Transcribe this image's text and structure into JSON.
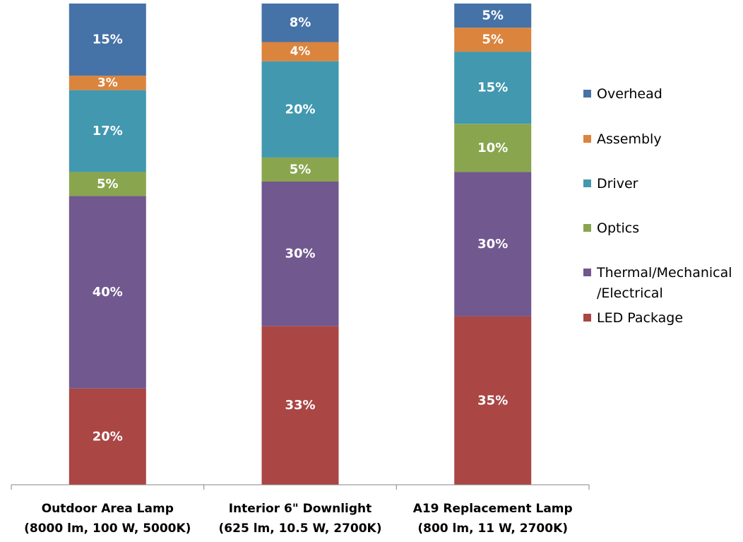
{
  "chart_data": {
    "type": "bar",
    "stacked": true,
    "percent": true,
    "title": "",
    "xlabel": "",
    "ylabel": "",
    "ylim": [
      0,
      100
    ],
    "grid": false,
    "legend_position": "right",
    "categories": [
      [
        "Outdoor Area Lamp",
        "(8000 lm, 100 W, 5000K)"
      ],
      [
        "Interior 6\" Downlight",
        "(625 lm, 10.5 W, 2700K)"
      ],
      [
        "A19 Replacement Lamp",
        "(800 lm, 11 W, 2700K)"
      ]
    ],
    "series": [
      {
        "name": "LED Package",
        "color": "#AA4644",
        "values": [
          20,
          33,
          35
        ],
        "labels": [
          "20%",
          "33%",
          "35%"
        ]
      },
      {
        "name": "Thermal/Mechanical /Electrical",
        "legend_lines": [
          "Thermal/Mechanical",
          "/Electrical"
        ],
        "color": "#71588F",
        "values": [
          40,
          30,
          30
        ],
        "labels": [
          "40%",
          "30%",
          "30%"
        ]
      },
      {
        "name": "Optics",
        "color": "#89A54E",
        "values": [
          5,
          5,
          10
        ],
        "labels": [
          "5%",
          "5%",
          "10%"
        ]
      },
      {
        "name": "Driver",
        "color": "#4198AF",
        "values": [
          17,
          20,
          15
        ],
        "labels": [
          "17%",
          "20%",
          "15%"
        ]
      },
      {
        "name": "Assembly",
        "color": "#DB843D",
        "values": [
          3,
          4,
          5
        ],
        "labels": [
          "3%",
          "4%",
          "5%"
        ]
      },
      {
        "name": "Overhead",
        "color": "#4572A7",
        "values": [
          15,
          8,
          5
        ],
        "labels": [
          "15%",
          "8%",
          "5%"
        ]
      }
    ],
    "legend_order": [
      "Overhead",
      "Assembly",
      "Driver",
      "Optics",
      "Thermal/Mechanical /Electrical",
      "LED Package"
    ]
  }
}
